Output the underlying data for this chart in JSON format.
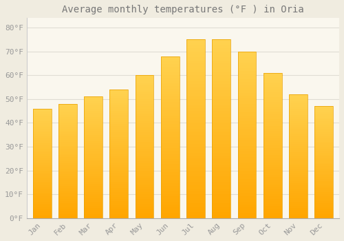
{
  "title": "Average monthly temperatures (°F ) in Oria",
  "months": [
    "Jan",
    "Feb",
    "Mar",
    "Apr",
    "May",
    "Jun",
    "Jul",
    "Aug",
    "Sep",
    "Oct",
    "Nov",
    "Dec"
  ],
  "values": [
    46,
    48,
    51,
    54,
    60,
    68,
    75,
    75,
    70,
    61,
    52,
    47
  ],
  "bar_color_main": "#FFA500",
  "bar_color_top": "#FFD04B",
  "background_color": "#f0ece0",
  "plot_bg_color": "#faf7ee",
  "grid_color": "#e0ddd4",
  "title_fontsize": 10,
  "tick_fontsize": 8,
  "ylabel_ticks": [
    0,
    10,
    20,
    30,
    40,
    50,
    60,
    70,
    80
  ],
  "ylim": [
    0,
    84
  ],
  "text_color": "#999999",
  "title_color": "#777777"
}
